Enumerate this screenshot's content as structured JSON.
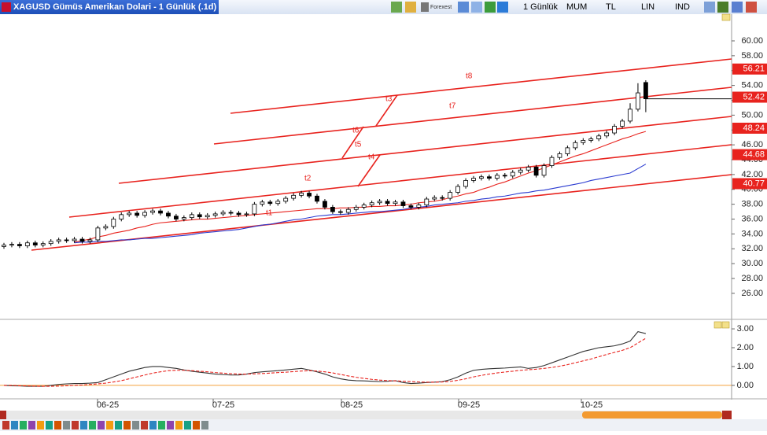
{
  "toolbar": {
    "title": "XAGUSD Gümüs Amerikan Dolari - 1 Günlük (.1d)",
    "forex": "Forexest",
    "period": "1 Günlük",
    "buttons": [
      "MUM",
      "TL",
      "LIN",
      "IND"
    ]
  },
  "price_panel": {
    "ylim": [
      22.6,
      63.6
    ],
    "yticks": [
      {
        "value": 60,
        "label": "60.00"
      },
      {
        "value": 58,
        "label": "58.00"
      },
      {
        "value": 56,
        "label": "56.00"
      },
      {
        "value": 54,
        "label": "54.00"
      },
      {
        "value": 52,
        "label": "52.00"
      },
      {
        "value": 50,
        "label": "50.00"
      },
      {
        "value": 48,
        "label": "48.00"
      },
      {
        "value": 46,
        "label": "46.00"
      },
      {
        "value": 44,
        "label": "44.00"
      },
      {
        "value": 42,
        "label": "42.00"
      },
      {
        "value": 40,
        "label": "40.00"
      },
      {
        "value": 38,
        "label": "38.00"
      },
      {
        "value": 36,
        "label": "36.00"
      },
      {
        "value": 34,
        "label": "34.00"
      },
      {
        "value": 32,
        "label": "32.00"
      },
      {
        "value": 30,
        "label": "30.00"
      },
      {
        "value": 28,
        "label": "28.00"
      },
      {
        "value": 26,
        "label": "26.00"
      }
    ],
    "up_color": "#ffffff",
    "down_color": "#000000",
    "candles": [
      [
        32.3,
        32.8,
        32.0,
        32.5
      ],
      [
        32.5,
        32.9,
        32.2,
        32.6
      ],
      [
        32.6,
        32.9,
        32.1,
        32.4
      ],
      [
        32.4,
        33.1,
        32.1,
        32.8
      ],
      [
        32.8,
        33.1,
        32.2,
        32.5
      ],
      [
        32.5,
        33.0,
        32.2,
        32.7
      ],
      [
        32.7,
        33.3,
        32.4,
        33.0
      ],
      [
        33.0,
        33.5,
        32.7,
        33.2
      ],
      [
        33.2,
        33.5,
        32.8,
        33.1
      ],
      [
        33.1,
        33.6,
        32.8,
        33.3
      ],
      [
        33.3,
        33.6,
        32.7,
        33.0
      ],
      [
        33.0,
        33.5,
        32.7,
        33.2
      ],
      [
        33.2,
        35.1,
        32.9,
        34.8
      ],
      [
        34.8,
        35.3,
        34.5,
        35.0
      ],
      [
        35.0,
        36.3,
        34.7,
        36.0
      ],
      [
        36.0,
        36.9,
        35.7,
        36.6
      ],
      [
        36.6,
        37.1,
        36.3,
        36.8
      ],
      [
        36.8,
        37.1,
        36.2,
        36.5
      ],
      [
        36.5,
        37.2,
        36.2,
        36.9
      ],
      [
        36.9,
        37.4,
        36.6,
        37.1
      ],
      [
        37.1,
        37.4,
        36.5,
        36.8
      ],
      [
        36.8,
        37.1,
        36.1,
        36.4
      ],
      [
        36.4,
        36.7,
        35.7,
        36.0
      ],
      [
        36.0,
        36.5,
        35.7,
        36.2
      ],
      [
        36.2,
        36.9,
        35.9,
        36.6
      ],
      [
        36.6,
        36.9,
        36.0,
        36.3
      ],
      [
        36.3,
        36.8,
        36.0,
        36.5
      ],
      [
        36.5,
        37.0,
        36.2,
        36.7
      ],
      [
        36.7,
        37.2,
        36.4,
        36.9
      ],
      [
        36.9,
        37.2,
        36.5,
        36.8
      ],
      [
        36.8,
        37.1,
        36.3,
        36.6
      ],
      [
        36.6,
        37.0,
        36.3,
        36.7
      ],
      [
        36.7,
        38.3,
        36.4,
        38.0
      ],
      [
        38.0,
        38.6,
        37.7,
        38.3
      ],
      [
        38.3,
        38.6,
        37.8,
        38.1
      ],
      [
        38.1,
        38.7,
        37.8,
        38.4
      ],
      [
        38.4,
        39.1,
        38.1,
        38.8
      ],
      [
        38.8,
        39.5,
        38.5,
        39.2
      ],
      [
        39.2,
        39.8,
        38.9,
        39.5
      ],
      [
        39.5,
        39.8,
        38.8,
        39.1
      ],
      [
        39.1,
        39.4,
        38.1,
        38.4
      ],
      [
        38.4,
        38.7,
        37.3,
        37.6
      ],
      [
        37.6,
        37.9,
        36.7,
        37.0
      ],
      [
        37.0,
        37.3,
        36.6,
        36.9
      ],
      [
        36.9,
        37.6,
        36.6,
        37.3
      ],
      [
        37.3,
        37.9,
        37.0,
        37.6
      ],
      [
        37.6,
        38.2,
        37.3,
        37.9
      ],
      [
        37.9,
        38.5,
        37.6,
        38.2
      ],
      [
        38.2,
        38.7,
        37.9,
        38.4
      ],
      [
        38.4,
        38.7,
        37.8,
        38.1
      ],
      [
        38.1,
        38.6,
        37.8,
        38.3
      ],
      [
        38.3,
        38.6,
        37.5,
        37.8
      ],
      [
        37.8,
        38.1,
        37.3,
        37.6
      ],
      [
        37.6,
        38.2,
        37.3,
        37.9
      ],
      [
        37.9,
        39.0,
        37.6,
        38.7
      ],
      [
        38.7,
        39.2,
        38.4,
        38.9
      ],
      [
        38.9,
        39.2,
        38.5,
        38.8
      ],
      [
        38.8,
        39.9,
        38.5,
        39.6
      ],
      [
        39.6,
        40.7,
        39.3,
        40.4
      ],
      [
        40.4,
        41.5,
        40.1,
        41.2
      ],
      [
        41.2,
        41.8,
        40.9,
        41.5
      ],
      [
        41.5,
        42.0,
        41.2,
        41.7
      ],
      [
        41.7,
        42.0,
        41.2,
        41.5
      ],
      [
        41.5,
        42.2,
        41.2,
        41.9
      ],
      [
        41.9,
        42.2,
        41.5,
        41.8
      ],
      [
        41.8,
        42.6,
        41.5,
        42.3
      ],
      [
        42.3,
        42.9,
        42.0,
        42.6
      ],
      [
        42.6,
        43.3,
        42.3,
        43.0
      ],
      [
        43.0,
        43.3,
        41.6,
        41.9
      ],
      [
        41.9,
        43.5,
        41.6,
        43.2
      ],
      [
        43.2,
        44.6,
        42.9,
        44.3
      ],
      [
        44.3,
        45.1,
        44.0,
        44.8
      ],
      [
        44.8,
        45.9,
        44.5,
        45.6
      ],
      [
        45.6,
        46.6,
        45.3,
        46.3
      ],
      [
        46.3,
        46.9,
        46.0,
        46.6
      ],
      [
        46.6,
        47.1,
        46.3,
        46.8
      ],
      [
        46.8,
        47.5,
        46.5,
        47.2
      ],
      [
        47.2,
        47.9,
        46.9,
        47.6
      ],
      [
        47.6,
        48.8,
        47.3,
        48.5
      ],
      [
        48.5,
        49.5,
        48.2,
        49.2
      ],
      [
        49.2,
        51.6,
        48.9,
        50.8
      ],
      [
        50.8,
        54.3,
        50.5,
        53.0
      ],
      [
        54.4,
        54.7,
        50.4,
        52.2
      ]
    ],
    "averages": [
      {
        "color": "#e8231e",
        "values": [
          null,
          null,
          null,
          null,
          null,
          null,
          null,
          null,
          null,
          32.9,
          33.1,
          33.3,
          33.6,
          33.8,
          34.1,
          34.3,
          34.5,
          34.8,
          35.0,
          35.3,
          35.5,
          35.6,
          35.7,
          35.8,
          35.9,
          36.0,
          36.0,
          36.1,
          36.2,
          36.3,
          36.4,
          36.5,
          36.6,
          36.7,
          36.8,
          36.9,
          37.0,
          37.1,
          37.2,
          37.3,
          37.4,
          37.4,
          37.4,
          37.5,
          37.5,
          37.6,
          37.6,
          37.7,
          37.7,
          37.8,
          37.8,
          37.9,
          38.0,
          38.2,
          38.3,
          38.4,
          38.6,
          38.9,
          39.1,
          39.4,
          39.6,
          40.0,
          40.3,
          40.7,
          41.0,
          41.4,
          41.8,
          42.2,
          42.5,
          42.9,
          43.3,
          43.7,
          44.1,
          44.5,
          44.8,
          45.2,
          45.6,
          46.0,
          46.4,
          46.8,
          47.1,
          47.5,
          47.8
        ]
      },
      {
        "color": "#2a3ad0",
        "values": [
          null,
          null,
          null,
          null,
          null,
          null,
          null,
          null,
          null,
          32.8,
          32.9,
          32.9,
          33.0,
          33.0,
          33.1,
          33.2,
          33.2,
          33.3,
          33.4,
          33.4,
          33.5,
          33.6,
          33.7,
          33.8,
          33.9,
          34.1,
          34.2,
          34.3,
          34.4,
          34.5,
          34.6,
          34.8,
          35.0,
          35.2,
          35.3,
          35.5,
          35.7,
          35.9,
          36.0,
          36.2,
          36.4,
          36.5,
          36.6,
          36.6,
          36.7,
          36.8,
          36.9,
          37.0,
          37.0,
          37.1,
          37.2,
          37.3,
          37.5,
          37.6,
          37.7,
          37.9,
          38.0,
          38.1,
          38.2,
          38.4,
          38.5,
          38.7,
          38.8,
          39.0,
          39.1,
          39.3,
          39.5,
          39.6,
          39.8,
          39.9,
          40.1,
          40.3,
          40.5,
          40.7,
          40.9,
          41.2,
          41.4,
          41.6,
          41.8,
          42.0,
          42.2,
          42.8,
          43.4
        ]
      }
    ],
    "channel_labels": [
      "t8",
      "t3",
      "t7",
      "t6",
      "t5",
      "t4",
      "t2",
      "t1"
    ],
    "price_levels": [
      56.21,
      52.42,
      48.24,
      44.68,
      40.77
    ]
  },
  "indicator_panel": {
    "ylim": [
      -0.63,
      3.42
    ],
    "yticks": [
      {
        "value": 3,
        "label": "3.00"
      },
      {
        "value": 2,
        "label": "2.00"
      },
      {
        "value": 1,
        "label": "1.00"
      },
      {
        "value": 0,
        "label": "0.00"
      }
    ],
    "zero_color": "#f5a03c",
    "series": [
      {
        "color": "#333333",
        "values": [
          0.0,
          -0.02,
          -0.03,
          -0.05,
          -0.05,
          -0.05,
          0.0,
          0.05,
          0.08,
          0.1,
          0.1,
          0.12,
          0.15,
          0.3,
          0.45,
          0.6,
          0.75,
          0.85,
          0.95,
          1.0,
          1.0,
          0.95,
          0.9,
          0.82,
          0.75,
          0.7,
          0.65,
          0.6,
          0.57,
          0.55,
          0.55,
          0.6,
          0.68,
          0.72,
          0.75,
          0.78,
          0.82,
          0.86,
          0.9,
          0.82,
          0.72,
          0.6,
          0.45,
          0.35,
          0.28,
          0.25,
          0.24,
          0.22,
          0.2,
          0.22,
          0.25,
          0.15,
          0.1,
          0.12,
          0.15,
          0.17,
          0.2,
          0.3,
          0.45,
          0.65,
          0.8,
          0.85,
          0.88,
          0.9,
          0.92,
          0.95,
          0.98,
          0.9,
          0.95,
          1.05,
          1.2,
          1.35,
          1.5,
          1.65,
          1.8,
          1.9,
          2.0,
          2.05,
          2.1,
          2.2,
          2.35,
          2.85,
          2.75
        ]
      },
      {
        "color": "#e8231e",
        "dashed": true,
        "values": [
          0.0,
          0.0,
          -0.02,
          -0.03,
          -0.04,
          -0.05,
          -0.05,
          -0.04,
          -0.02,
          0.0,
          0.02,
          0.05,
          0.08,
          0.12,
          0.18,
          0.25,
          0.35,
          0.45,
          0.55,
          0.65,
          0.72,
          0.78,
          0.8,
          0.8,
          0.78,
          0.75,
          0.72,
          0.68,
          0.65,
          0.62,
          0.6,
          0.6,
          0.61,
          0.63,
          0.65,
          0.68,
          0.7,
          0.73,
          0.76,
          0.78,
          0.76,
          0.72,
          0.66,
          0.58,
          0.5,
          0.43,
          0.37,
          0.32,
          0.28,
          0.25,
          0.24,
          0.22,
          0.2,
          0.18,
          0.17,
          0.17,
          0.18,
          0.21,
          0.27,
          0.35,
          0.45,
          0.53,
          0.6,
          0.66,
          0.71,
          0.75,
          0.8,
          0.83,
          0.86,
          0.9,
          0.95,
          1.02,
          1.1,
          1.2,
          1.3,
          1.4,
          1.52,
          1.64,
          1.75,
          1.86,
          2.0,
          2.25,
          2.5
        ]
      }
    ]
  },
  "time_axis": {
    "labels": [
      "06-25",
      "07-25",
      "08-25",
      "09-25",
      "10-25"
    ]
  }
}
